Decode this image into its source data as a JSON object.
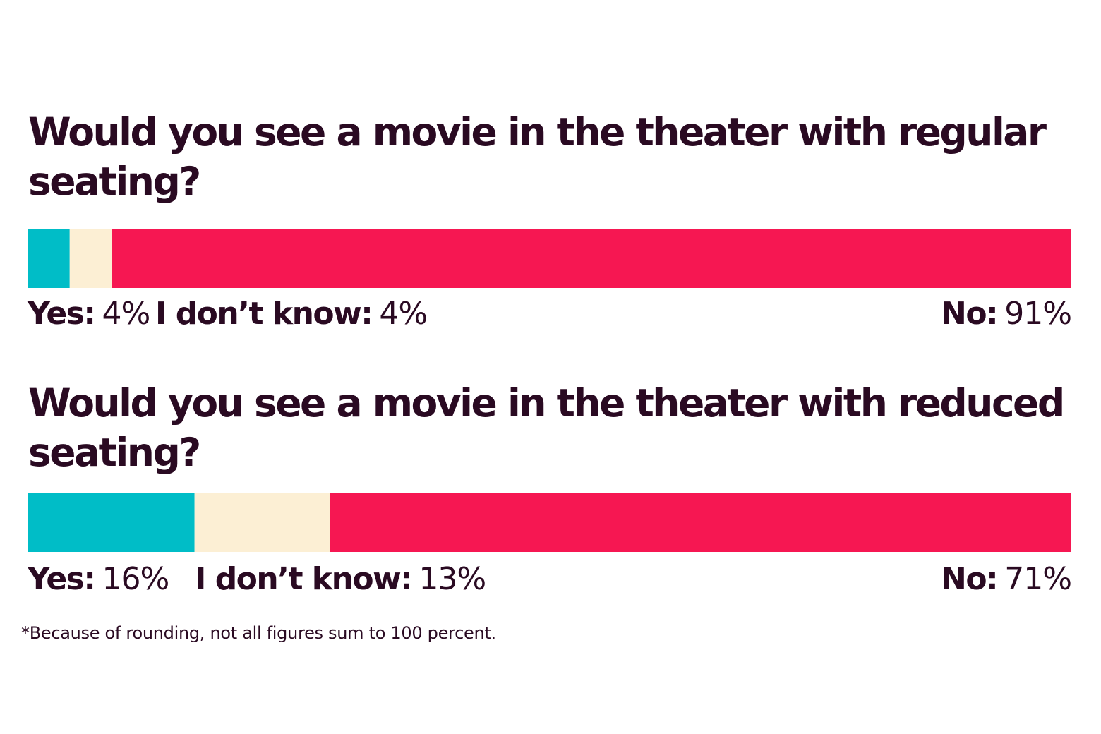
{
  "chart_data": [
    {
      "type": "bar",
      "stacked": true,
      "orientation": "horizontal",
      "title": "Would you see a movie in the theater with regular seating?",
      "segments": [
        {
          "name": "Yes:",
          "value": 4,
          "value_label": "4%",
          "color": "#00bdc7"
        },
        {
          "name": "I don’t know:",
          "value": 4,
          "value_label": "4%",
          "color": "#fcefd4"
        },
        {
          "name": "No:",
          "value": 91,
          "value_label": "91%",
          "color": "#f61752"
        }
      ]
    },
    {
      "type": "bar",
      "stacked": true,
      "orientation": "horizontal",
      "title": "Would you see a movie in the theater with reduced seating?",
      "segments": [
        {
          "name": "Yes:",
          "value": 16,
          "value_label": "16%",
          "color": "#00bdc7"
        },
        {
          "name": "I don’t know:",
          "value": 13,
          "value_label": "13%",
          "color": "#fcefd4"
        },
        {
          "name": "No:",
          "value": 71,
          "value_label": "71%",
          "color": "#f61752"
        }
      ]
    }
  ],
  "footnote": "*Because of rounding, not all figures sum to 100 percent."
}
